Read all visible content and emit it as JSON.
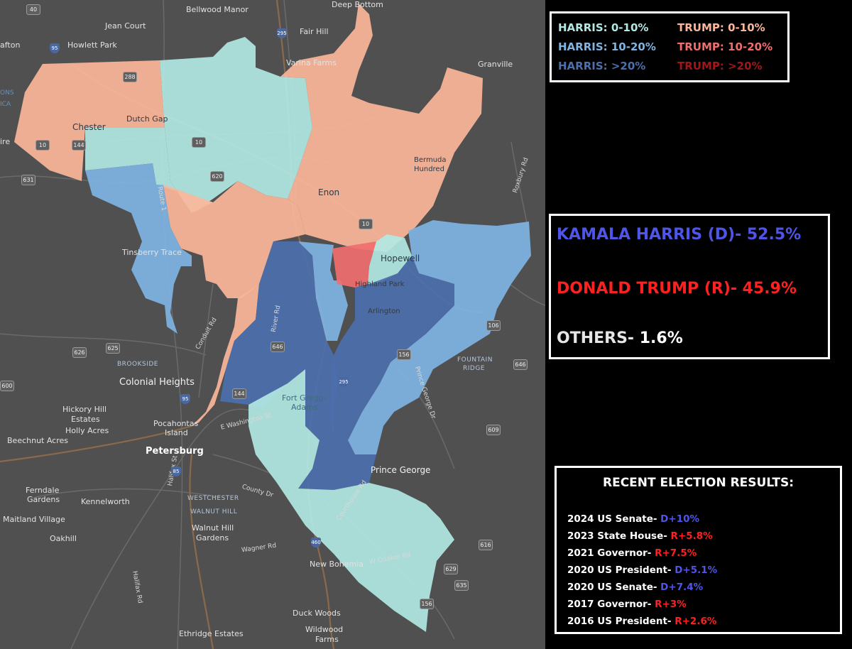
{
  "colors": {
    "harris_0_10": "#b2e8e3",
    "harris_10_20": "#7fb4e3",
    "harris_gt20": "#4c6fae",
    "trump_0_10": "#fbb69a",
    "trump_10_20": "#f06e6e",
    "trump_gt20": "#a41616",
    "dem_text": "#4f55e8",
    "rep_text": "#ff2020",
    "map_bg": "#505050"
  },
  "legend": {
    "harris": [
      "HARRIS: 0-10%",
      "HARRIS: 10-20%",
      "HARRIS: >20%"
    ],
    "trump": [
      "TRUMP: 0-10%",
      "TRUMP: 10-20%",
      "TRUMP: >20%"
    ]
  },
  "results": {
    "harris": "KAMALA HARRIS (D)- 52.5%",
    "trump": "DONALD TRUMP (R)- 45.9%",
    "others_label": "OTHERS-",
    "others_value": "1.6%"
  },
  "recent": {
    "title": "RECENT ELECTION RESULTS:",
    "rows": [
      {
        "label": "2024 US Senate-",
        "value": "D+10%",
        "party": "D"
      },
      {
        "label": "2023 State House-",
        "value": "R+5.8%",
        "party": "R"
      },
      {
        "label": "2021 Governor-",
        "value": "R+7.5%",
        "party": "R"
      },
      {
        "label": "2020 US President-",
        "value": "D+5.1%",
        "party": "D"
      },
      {
        "label": "2020 US Senate-",
        "value": "D+7.4%",
        "party": "D"
      },
      {
        "label": "2017 Governor-",
        "value": "R+3%",
        "party": "R"
      },
      {
        "label": "2016 US President-",
        "value": "R+2.6%",
        "party": "R"
      }
    ]
  },
  "map": {
    "places": {
      "bellwood_manor": "Bellwood Manor",
      "jean_court": "Jean Court",
      "howlett_park": "Howlett Park",
      "afton": "afton",
      "fair_hill": "Fair Hill",
      "deep_bottom": "Deep Bottom",
      "varina_farms": "Varina Farms",
      "granville": "Granville",
      "chester": "Chester",
      "dutch_gap": "Dutch Gap",
      "ons": "ONS",
      "ica": "ICA",
      "ire": "ire",
      "bermuda": "Bermuda",
      "hundred": "Hundred",
      "enon": "Enon",
      "tinsberry_trace": "Tinsberry Trace",
      "hopewell": "Hopewell",
      "highland_park": "Highland Park",
      "arlington": "Arlington",
      "brookside": "BROOKSIDE",
      "colonial_heights": "Colonial Heights",
      "fountain": "FOUNTAIN",
      "ridge": "RIDGE",
      "hickory_hill": "Hickory Hill",
      "estates": "Estates",
      "holly_acres": "Holly Acres",
      "beechnut_acres": "Beechnut Acres",
      "pocahontas": "Pocahontas",
      "island": "Island",
      "petersburg": "Petersburg",
      "fort_gregg": "Fort Gregg-",
      "adams": "Adams",
      "prince_george": "Prince George",
      "ferndale": "Ferndale",
      "gardens": "Gardens",
      "kennelworth": "Kennelworth",
      "westchester": "WESTCHESTER",
      "walnut_hill_area": "WALNUT HILL",
      "walnut_hill": "Walnut Hill",
      "walnut_gardens": "Gardens",
      "maitland_village": "Maitland Village",
      "oakhill": "Oakhill",
      "new_bohemia": "New Bohemia",
      "duck_woods": "Duck Woods",
      "wildwood": "Wildwood",
      "farms": "Farms",
      "ethridge_estates": "Ethridge Estates"
    },
    "roads": {
      "route1": "Route 1",
      "river_rd": "River Rd",
      "conduit_rd": "Conduit Rd",
      "e_washington": "E Washington St",
      "county_dr": "County Dr",
      "courthouse_rd": "Courthouse Rd",
      "wagner_rd": "Wagner Rd",
      "w_quaker_rd": "W Quaker Rd",
      "halifax_st": "Halifax St",
      "halifax_rd": "Halifax Rd",
      "prince_george_dr": "Prince George Dr",
      "roxbury_rd": "Roxbury Rd"
    },
    "shields": [
      "40",
      "288",
      "10",
      "144",
      "631",
      "620",
      "10",
      "10",
      "626",
      "625",
      "646",
      "144",
      "156",
      "106",
      "646",
      "609",
      "616",
      "629",
      "635",
      "156",
      "600"
    ],
    "interstates": [
      "95",
      "295",
      "95",
      "295",
      "85",
      "460"
    ]
  }
}
